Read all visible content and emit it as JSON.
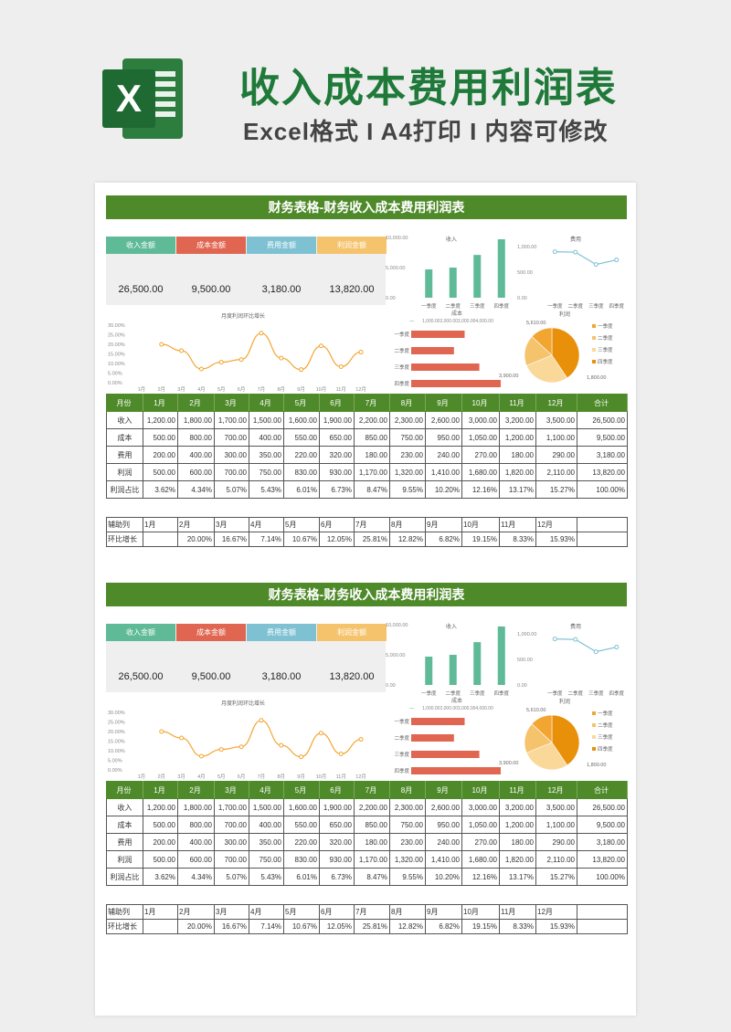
{
  "header": {
    "logo_letter": "X",
    "title": "收入成本费用利润表",
    "subtitle": "Excel格式 I A4打印 I 内容可修改"
  },
  "colors": {
    "brand_green": "#1f7a3a",
    "band_green": "#4f8a2a",
    "income": "#5fba98",
    "cost": "#e06651",
    "expense": "#7ec1d3",
    "profit": "#f6c36d",
    "line_orange": "#f3a531",
    "pie": [
      "#f3a531",
      "#f6c36d",
      "#f9d89a",
      "#e8900a"
    ]
  },
  "section": {
    "band_title": "财务表格-财务收入成本费用利润表",
    "kpis": [
      {
        "label": "收入金额",
        "value": "26,500.00",
        "color": "#5fba98"
      },
      {
        "label": "成本金额",
        "value": "9,500.00",
        "color": "#e06651"
      },
      {
        "label": "费用金额",
        "value": "3,180.00",
        "color": "#7ec1d3"
      },
      {
        "label": "利润金额",
        "value": "13,820.00",
        "color": "#f6c36d"
      }
    ],
    "table": {
      "headers": [
        "月份",
        "1月",
        "2月",
        "3月",
        "4月",
        "5月",
        "6月",
        "7月",
        "8月",
        "9月",
        "10月",
        "11月",
        "12月",
        "合计"
      ],
      "rows": [
        {
          "label": "收入",
          "cells": [
            "1,200.00",
            "1,800.00",
            "1,700.00",
            "1,500.00",
            "1,600.00",
            "1,900.00",
            "2,200.00",
            "2,300.00",
            "2,600.00",
            "3,000.00",
            "3,200.00",
            "3,500.00",
            "26,500.00"
          ]
        },
        {
          "label": "成本",
          "cells": [
            "500.00",
            "800.00",
            "700.00",
            "400.00",
            "550.00",
            "650.00",
            "850.00",
            "750.00",
            "950.00",
            "1,050.00",
            "1,200.00",
            "1,100.00",
            "9,500.00"
          ]
        },
        {
          "label": "费用",
          "cells": [
            "200.00",
            "400.00",
            "300.00",
            "350.00",
            "220.00",
            "320.00",
            "180.00",
            "230.00",
            "240.00",
            "270.00",
            "180.00",
            "290.00",
            "3,180.00"
          ]
        },
        {
          "label": "利润",
          "cells": [
            "500.00",
            "600.00",
            "700.00",
            "750.00",
            "830.00",
            "930.00",
            "1,170.00",
            "1,320.00",
            "1,410.00",
            "1,680.00",
            "1,820.00",
            "2,110.00",
            "13,820.00"
          ]
        },
        {
          "label": "利润占比",
          "cells": [
            "3.62%",
            "4.34%",
            "5.07%",
            "5.43%",
            "6.01%",
            "6.73%",
            "8.47%",
            "9.55%",
            "10.20%",
            "12.16%",
            "13.17%",
            "15.27%",
            "100.00%"
          ]
        }
      ]
    },
    "aux": {
      "row1": [
        "辅助列",
        "1月",
        "2月",
        "3月",
        "4月",
        "5月",
        "6月",
        "7月",
        "8月",
        "9月",
        "10月",
        "11月",
        "12月",
        ""
      ],
      "row2": [
        "环比增长",
        "",
        "20.00%",
        "16.67%",
        "7.14%",
        "10.67%",
        "12.05%",
        "25.81%",
        "12.82%",
        "6.82%",
        "19.15%",
        "8.33%",
        "15.93%",
        ""
      ]
    }
  },
  "chart_data": [
    {
      "type": "line",
      "title": "月度利润环比增长",
      "categories": [
        "1月",
        "2月",
        "3月",
        "4月",
        "5月",
        "6月",
        "7月",
        "8月",
        "9月",
        "10月",
        "11月",
        "12月"
      ],
      "values": [
        null,
        20.0,
        16.67,
        7.14,
        10.67,
        12.05,
        25.81,
        12.82,
        6.82,
        19.15,
        8.33,
        15.93
      ],
      "ylim": [
        0,
        30
      ],
      "yticks": [
        "30.00%",
        "25.00%",
        "20.00%",
        "15.00%",
        "10.00%",
        "5.00%",
        "0.00%"
      ]
    },
    {
      "type": "bar",
      "title": "收入",
      "categories": [
        "一季度",
        "二季度",
        "三季度",
        "四季度"
      ],
      "values": [
        4700,
        5000,
        7100,
        9700
      ],
      "ylim": [
        0,
        10000
      ],
      "yticks": [
        "10,000.00",
        "5,000.00",
        "0.00"
      ]
    },
    {
      "type": "line",
      "title": "费用",
      "categories": [
        "一季度",
        "二季度",
        "三季度",
        "四季度"
      ],
      "values": [
        900,
        890,
        650,
        740
      ],
      "ylim": [
        0,
        1000
      ],
      "yticks": [
        "1,000.00",
        "500.00",
        "0.00"
      ]
    },
    {
      "type": "bar",
      "title": "成本",
      "categories": [
        "一季度",
        "二季度",
        "三季度",
        "四季度"
      ],
      "values": [
        2000,
        1600,
        2550,
        3350
      ],
      "xlim": [
        0,
        4000
      ],
      "xticks": [
        "",
        "1,000.002,000.003,000.004,000.00"
      ]
    },
    {
      "type": "pie",
      "title": "利润",
      "categories": [
        "一季度",
        "二季度",
        "三季度",
        "四季度"
      ],
      "values": [
        1800,
        2510,
        3900,
        5610
      ],
      "labels": [
        "1,800.00",
        "",
        "3,900.00",
        "5,610.00"
      ]
    }
  ]
}
